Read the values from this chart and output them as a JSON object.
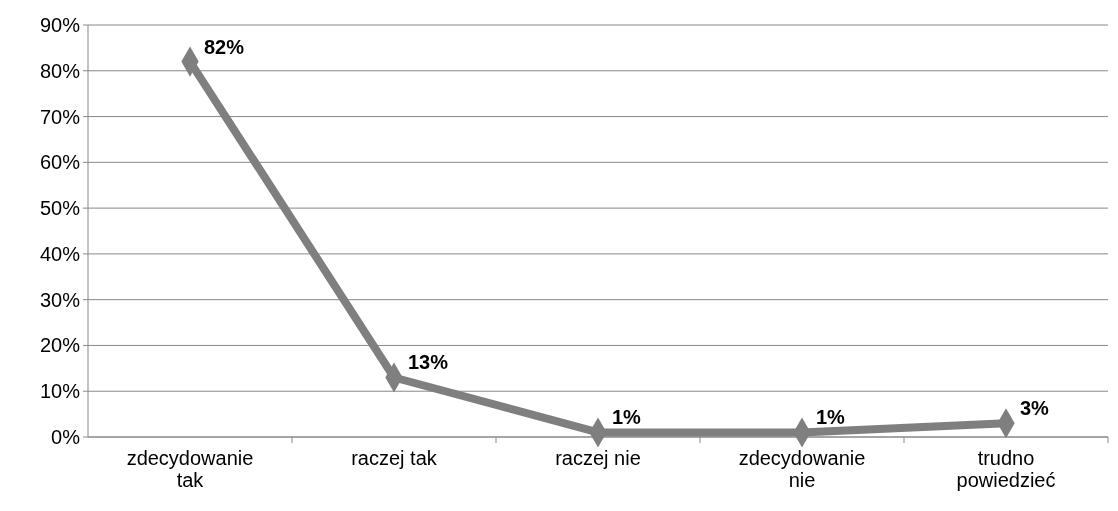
{
  "chart_data": {
    "type": "line",
    "categories": [
      "zdecydowanie tak",
      "raczej tak",
      "raczej nie",
      "zdecydowanie nie",
      "trudno powiedzieć"
    ],
    "series": [
      {
        "color": "#7f7f7f",
        "values": [
          82,
          13,
          1,
          1,
          3
        ],
        "value_labels": [
          "82%",
          "13%",
          "1%",
          "1%",
          "3%"
        ]
      }
    ],
    "ylim": [
      0,
      90
    ],
    "yticks": [
      {
        "value": 0,
        "label": "0%"
      },
      {
        "value": 10,
        "label": "10%"
      },
      {
        "value": 20,
        "label": "20%"
      },
      {
        "value": 30,
        "label": "30%"
      },
      {
        "value": 40,
        "label": "40%"
      },
      {
        "value": 50,
        "label": "50%"
      },
      {
        "value": 60,
        "label": "60%"
      },
      {
        "value": 70,
        "label": "70%"
      },
      {
        "value": 80,
        "label": "80%"
      },
      {
        "value": 90,
        "label": "90%"
      }
    ],
    "grid": "y",
    "marker": "diamond",
    "line_style": "solid"
  }
}
